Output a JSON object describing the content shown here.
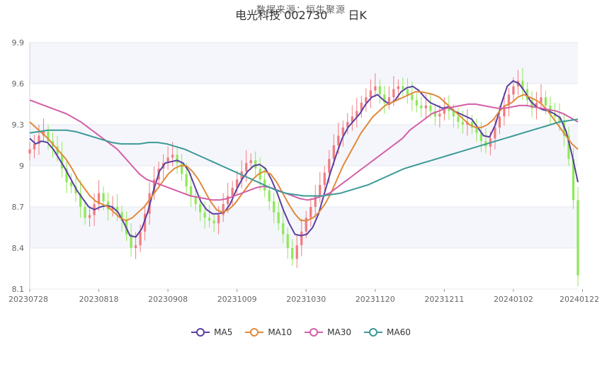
{
  "header": {
    "source_text": "数据来源：恒生聚源",
    "stock_title": "电光科技 002730",
    "period": "日K"
  },
  "chart_data": {
    "type": "candlestick",
    "xlabel": "",
    "ylabel": "",
    "ylim": [
      8.1,
      9.9
    ],
    "yticks": [
      8.1,
      8.4,
      8.7,
      9.0,
      9.3,
      9.6,
      9.9
    ],
    "ytick_labels": [
      "8.1",
      "8.4",
      "8.7",
      "9",
      "9.3",
      "9.6",
      "9.9"
    ],
    "x_labels": [
      "20230728",
      "20230818",
      "20230908",
      "20231009",
      "20231030",
      "20231120",
      "20231211",
      "20240102",
      "20240122"
    ],
    "x_label_index": [
      0,
      15,
      30,
      45,
      60,
      75,
      90,
      105,
      120
    ],
    "up_color": "#f07c82",
    "down_color": "#8fe85a",
    "grid": true,
    "legend_position": "bottom",
    "close": [
      9.12,
      9.16,
      9.22,
      9.25,
      9.18,
      9.14,
      9.08,
      8.98,
      8.88,
      8.85,
      8.8,
      8.7,
      8.62,
      8.64,
      8.72,
      8.8,
      8.74,
      8.68,
      8.7,
      8.66,
      8.6,
      8.5,
      8.4,
      8.42,
      8.52,
      8.65,
      8.8,
      8.9,
      8.98,
      9.02,
      9.06,
      9.08,
      9.02,
      8.94,
      8.85,
      8.78,
      8.72,
      8.66,
      8.62,
      8.6,
      8.58,
      8.64,
      8.72,
      8.78,
      8.84,
      8.9,
      8.96,
      9.02,
      9.04,
      8.98,
      8.9,
      8.82,
      8.74,
      8.66,
      8.58,
      8.5,
      8.4,
      8.32,
      8.42,
      8.52,
      8.62,
      8.7,
      8.78,
      8.86,
      8.95,
      9.05,
      9.15,
      9.22,
      9.28,
      9.32,
      9.36,
      9.4,
      9.46,
      9.5,
      9.55,
      9.58,
      9.52,
      9.46,
      9.5,
      9.56,
      9.58,
      9.56,
      9.52,
      9.48,
      9.44,
      9.42,
      9.44,
      9.4,
      9.36,
      9.38,
      9.42,
      9.4,
      9.36,
      9.32,
      9.3,
      9.32,
      9.28,
      9.24,
      9.18,
      9.14,
      9.2,
      9.28,
      9.36,
      9.44,
      9.52,
      9.58,
      9.62,
      9.56,
      9.48,
      9.42,
      9.46,
      9.5,
      9.44,
      9.38,
      9.36,
      9.32,
      9.22,
      9.05,
      8.75,
      8.2
    ],
    "series": [
      {
        "name": "MA5",
        "color": "#5b3fa0",
        "values": [
          9.2,
          9.16,
          9.18,
          9.17,
          9.12,
          9.05,
          8.98,
          8.9,
          8.82,
          8.76,
          8.7,
          8.68,
          8.7,
          8.71,
          8.7,
          8.66,
          8.58,
          8.49,
          8.48,
          8.54,
          8.66,
          8.82,
          8.96,
          9.02,
          9.03,
          9.04,
          9.02,
          8.96,
          8.85,
          8.74,
          8.68,
          8.65,
          8.65,
          8.66,
          8.72,
          8.82,
          8.9,
          8.96,
          9.0,
          9.01,
          8.98,
          8.9,
          8.8,
          8.68,
          8.58,
          8.5,
          8.49,
          8.5,
          8.55,
          8.65,
          8.8,
          8.95,
          9.08,
          9.2,
          9.28,
          9.33,
          9.38,
          9.45,
          9.5,
          9.52,
          9.48,
          9.45,
          9.48,
          9.54,
          9.57,
          9.58,
          9.55,
          9.5,
          9.46,
          9.44,
          9.42,
          9.43,
          9.4,
          9.38,
          9.36,
          9.34,
          9.28,
          9.22,
          9.21,
          9.3,
          9.45,
          9.58,
          9.62,
          9.6,
          9.54,
          9.47,
          9.43,
          9.41,
          9.4,
          9.38,
          9.35,
          9.25,
          9.08,
          8.88
        ]
      },
      {
        "name": "MA10",
        "color": "#e08a3c",
        "values": [
          9.32,
          9.28,
          9.24,
          9.2,
          9.15,
          9.1,
          9.05,
          8.98,
          8.9,
          8.84,
          8.78,
          8.74,
          8.72,
          8.7,
          8.66,
          8.62,
          8.6,
          8.62,
          8.66,
          8.7,
          8.76,
          8.82,
          8.88,
          8.94,
          8.98,
          9.0,
          9.0,
          8.96,
          8.9,
          8.82,
          8.74,
          8.68,
          8.66,
          8.68,
          8.72,
          8.78,
          8.84,
          8.9,
          8.94,
          8.96,
          8.94,
          8.88,
          8.8,
          8.72,
          8.65,
          8.6,
          8.6,
          8.62,
          8.66,
          8.72,
          8.8,
          8.9,
          9.0,
          9.08,
          9.16,
          9.24,
          9.3,
          9.36,
          9.4,
          9.44,
          9.46,
          9.48,
          9.5,
          9.52,
          9.54,
          9.54,
          9.53,
          9.52,
          9.5,
          9.46,
          9.42,
          9.38,
          9.34,
          9.3,
          9.28,
          9.28,
          9.3,
          9.34,
          9.4,
          9.44,
          9.46,
          9.5,
          9.52,
          9.5,
          9.48,
          9.45,
          9.4,
          9.34,
          9.28,
          9.22,
          9.16,
          9.12
        ]
      },
      {
        "name": "MA30",
        "color": "#d45fa8",
        "values": [
          9.48,
          9.46,
          9.44,
          9.42,
          9.4,
          9.38,
          9.35,
          9.32,
          9.28,
          9.24,
          9.2,
          9.16,
          9.12,
          9.06,
          9.0,
          8.94,
          8.9,
          8.88,
          8.86,
          8.84,
          8.82,
          8.8,
          8.78,
          8.77,
          8.76,
          8.75,
          8.75,
          8.76,
          8.78,
          8.8,
          8.82,
          8.84,
          8.85,
          8.84,
          8.82,
          8.8,
          8.78,
          8.76,
          8.75,
          8.76,
          8.78,
          8.8,
          8.84,
          8.88,
          8.92,
          8.96,
          9.0,
          9.04,
          9.08,
          9.12,
          9.16,
          9.2,
          9.26,
          9.3,
          9.34,
          9.38,
          9.4,
          9.42,
          9.43,
          9.44,
          9.45,
          9.45,
          9.44,
          9.43,
          9.42,
          9.42,
          9.43,
          9.44,
          9.44,
          9.43,
          9.42,
          9.41,
          9.4,
          9.38,
          9.35,
          9.32
        ]
      },
      {
        "name": "MA60",
        "color": "#3c9a98",
        "values": [
          9.24,
          9.25,
          9.26,
          9.26,
          9.26,
          9.25,
          9.23,
          9.21,
          9.19,
          9.17,
          9.16,
          9.16,
          9.16,
          9.17,
          9.17,
          9.16,
          9.14,
          9.12,
          9.09,
          9.06,
          9.03,
          9.0,
          8.97,
          8.94,
          8.91,
          8.88,
          8.85,
          8.82,
          8.8,
          8.79,
          8.78,
          8.78,
          8.78,
          8.79,
          8.8,
          8.82,
          8.84,
          8.86,
          8.89,
          8.92,
          8.95,
          8.98,
          9.0,
          9.02,
          9.04,
          9.06,
          9.08,
          9.1,
          9.12,
          9.14,
          9.16,
          9.18,
          9.2,
          9.22,
          9.24,
          9.26,
          9.28,
          9.3,
          9.32,
          9.33,
          9.34
        ]
      }
    ]
  },
  "legend": {
    "items": [
      {
        "label": "MA5",
        "color": "#5b3fa0"
      },
      {
        "label": "MA10",
        "color": "#e08a3c"
      },
      {
        "label": "MA30",
        "color": "#d45fa8"
      },
      {
        "label": "MA60",
        "color": "#3c9a98"
      }
    ]
  }
}
